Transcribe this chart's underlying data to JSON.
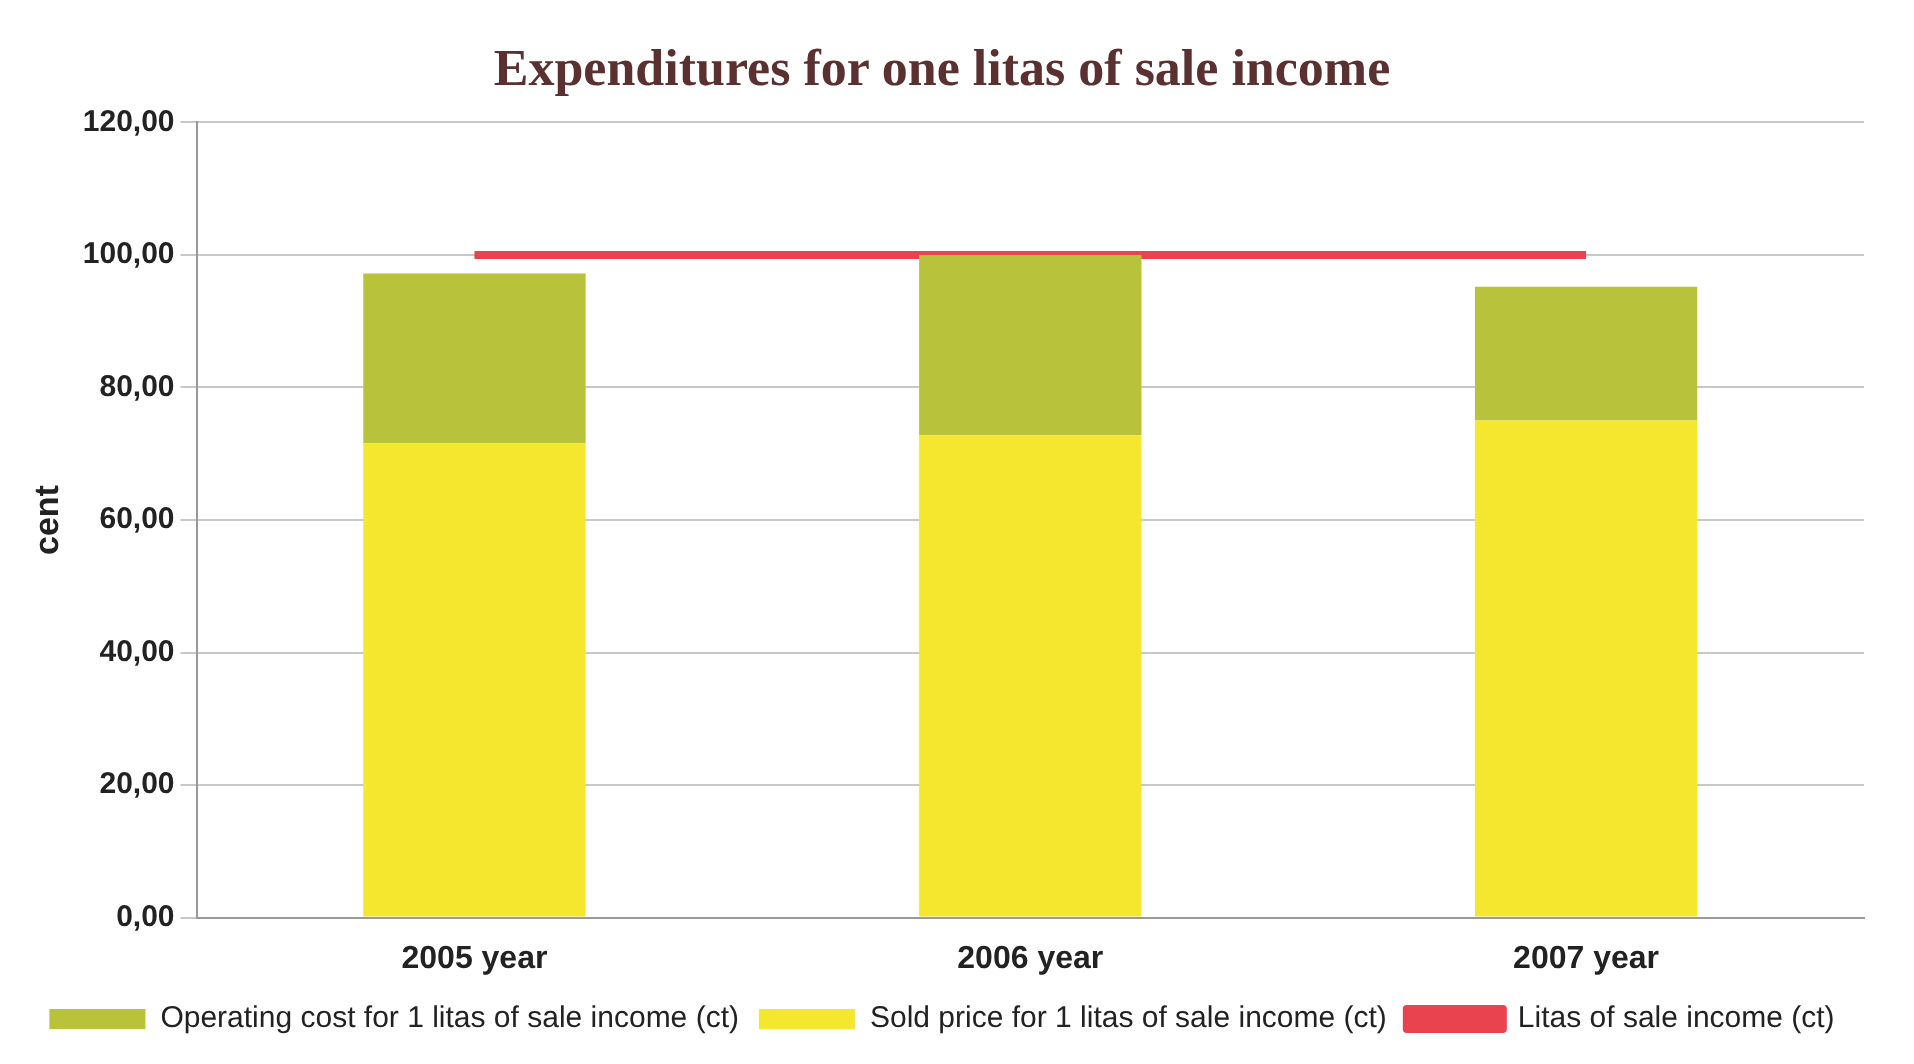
{
  "chart_data": {
    "type": "bar",
    "title": "Expenditures for one litas of sale income",
    "ylabel": "cent",
    "categories": [
      "2005 year",
      "2006 year",
      "2007 year"
    ],
    "stacked": true,
    "series": [
      {
        "name": "Sold price for 1 litas of sale income (ct)",
        "color": "#f5e62e",
        "values": [
          71.6,
          72.8,
          75.0
        ]
      },
      {
        "name": "Operating cost for 1 litas of sale income (ct)",
        "color": "#b8c23a",
        "values": [
          25.6,
          27.2,
          20.2
        ]
      },
      {
        "name": "Litas of sale income (ct)",
        "type": "line",
        "color": "#e8434f",
        "values": [
          100,
          100,
          100
        ]
      }
    ],
    "ylim": [
      0,
      120
    ],
    "yticks": [
      {
        "value": 0,
        "label": "0,00"
      },
      {
        "value": 20,
        "label": "20,00"
      },
      {
        "value": 40,
        "label": "40,00"
      },
      {
        "value": 60,
        "label": "60,00"
      },
      {
        "value": 80,
        "label": "80,00"
      },
      {
        "value": 100,
        "label": "100,00"
      },
      {
        "value": 120,
        "label": "120,00"
      }
    ],
    "grid": "y",
    "legend": "bottom",
    "marker": "none"
  }
}
